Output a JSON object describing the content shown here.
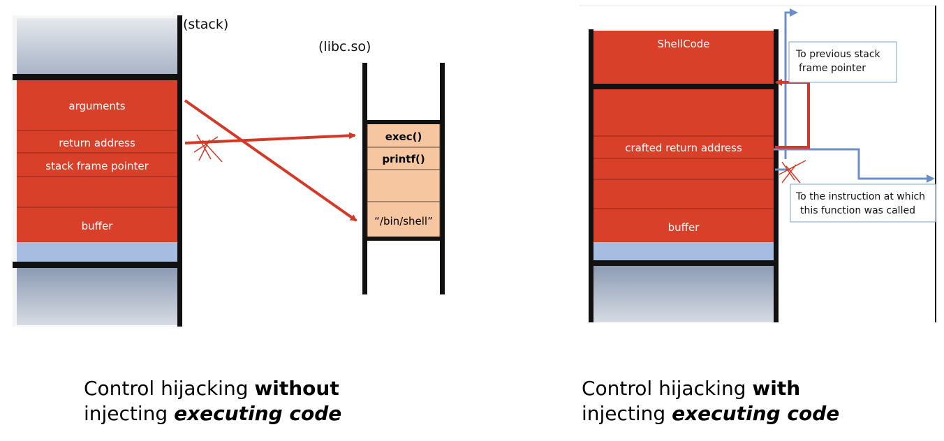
{
  "left_diagram": {
    "stack_title": "(stack)",
    "libc_title": "(libc.so)",
    "stack_labels": {
      "arguments": "arguments",
      "return_address": "return address",
      "stack_frame_pointer": "stack frame pointer",
      "buffer": "buffer"
    },
    "libc_labels": {
      "exec": "exec()",
      "printf": "printf()",
      "bin_shell": "“/bin/shell”"
    }
  },
  "right_diagram": {
    "stack_labels": {
      "shellcode": "ShellCode",
      "crafted_return_address": "crafted return address",
      "buffer": "buffer"
    },
    "note_previous_frame": {
      "line1": "To previous stack",
      "line2": "frame pointer"
    },
    "note_instruction": {
      "line1": "To  the instruction at which",
      "line2": "this function was called"
    }
  },
  "captions": {
    "left": {
      "prefix": "Control hijacking ",
      "emph": "without",
      "line2_prefix": "injecting ",
      "line2_emph": "executing code"
    },
    "right": {
      "prefix": "Control hijacking ",
      "emph": "with",
      "line2_prefix": "injecting ",
      "line2_emph": "executing code"
    }
  },
  "colors": {
    "stack_red": "#d9402a",
    "light_blue": "#a6bce0",
    "libc_peach": "#f5c6a0",
    "arrow_red": "#d23a27",
    "arrow_blue": "#6a8fc8"
  }
}
